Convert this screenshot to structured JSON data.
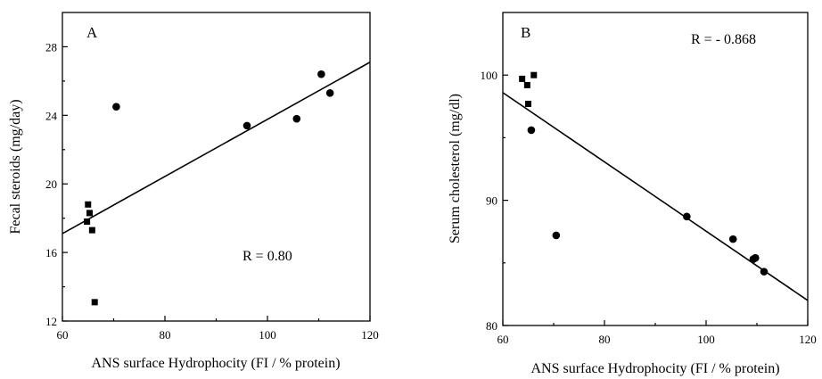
{
  "chart_data": [
    {
      "type": "scatter",
      "panel_label": "A",
      "xlabel": "ANS surface Hydrophocity (FI / % protein)",
      "ylabel": "Fecal steroids (mg/day)",
      "xlim": [
        60,
        120
      ],
      "ylim": [
        12,
        30
      ],
      "xticks": [
        60,
        80,
        100,
        120
      ],
      "yticks": [
        12,
        16,
        20,
        24,
        28
      ],
      "annotation": "R = 0.80",
      "points": [
        {
          "x": 64.8,
          "y": 17.8,
          "marker": "square"
        },
        {
          "x": 65.0,
          "y": 18.8,
          "marker": "square"
        },
        {
          "x": 65.3,
          "y": 18.3,
          "marker": "square"
        },
        {
          "x": 65.8,
          "y": 17.3,
          "marker": "square"
        },
        {
          "x": 66.3,
          "y": 13.1,
          "marker": "square"
        },
        {
          "x": 70.5,
          "y": 24.5,
          "marker": "circle"
        },
        {
          "x": 96.0,
          "y": 23.4,
          "marker": "circle"
        },
        {
          "x": 105.7,
          "y": 23.8,
          "marker": "circle"
        },
        {
          "x": 110.5,
          "y": 26.4,
          "marker": "circle"
        },
        {
          "x": 112.2,
          "y": 25.3,
          "marker": "circle"
        }
      ],
      "fit_line": {
        "x": [
          60,
          120
        ],
        "y": [
          17.1,
          27.1
        ]
      }
    },
    {
      "type": "scatter",
      "panel_label": "B",
      "xlabel": "ANS surface Hydrophocity (FI / % protein)",
      "ylabel": "Serum cholesterol (mg/dl)",
      "xlim": [
        60,
        120
      ],
      "ylim": [
        80,
        105
      ],
      "xticks": [
        60,
        80,
        100,
        120
      ],
      "yticks": [
        80,
        90,
        100
      ],
      "annotation": "R = - 0.868",
      "points": [
        {
          "x": 63.8,
          "y": 99.7,
          "marker": "square"
        },
        {
          "x": 64.8,
          "y": 99.2,
          "marker": "square"
        },
        {
          "x": 65.0,
          "y": 97.7,
          "marker": "square"
        },
        {
          "x": 65.6,
          "y": 95.6,
          "marker": "circle"
        },
        {
          "x": 66.1,
          "y": 100.0,
          "marker": "square"
        },
        {
          "x": 70.5,
          "y": 87.2,
          "marker": "circle"
        },
        {
          "x": 96.2,
          "y": 88.7,
          "marker": "circle"
        },
        {
          "x": 105.3,
          "y": 86.9,
          "marker": "circle"
        },
        {
          "x": 109.3,
          "y": 85.3,
          "marker": "circle"
        },
        {
          "x": 109.7,
          "y": 85.4,
          "marker": "circle"
        },
        {
          "x": 111.4,
          "y": 84.3,
          "marker": "circle"
        }
      ],
      "fit_line": {
        "x": [
          60,
          120
        ],
        "y": [
          98.6,
          82.0
        ]
      }
    }
  ]
}
